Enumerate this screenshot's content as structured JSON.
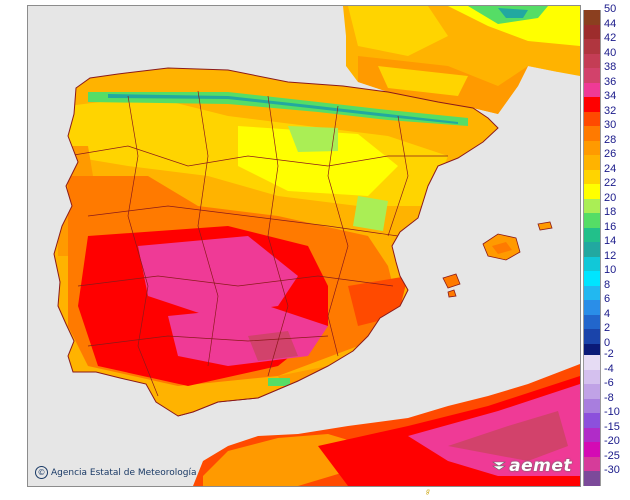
{
  "map": {
    "title": "",
    "credit": "Agencia Estatal de Meteorología",
    "copyright_symbol": "©",
    "logo_text": "aemet",
    "bottom_glyph": "ℊ",
    "colors": {
      "sea": "#e6e6e6",
      "border": "#8b1a1a",
      "land_base": "#ffb300"
    }
  },
  "legend": {
    "units": "",
    "positive": [
      {
        "label": "50",
        "color": "#8b3f1f"
      },
      {
        "label": "44",
        "color": "#9d2c2c"
      },
      {
        "label": "42",
        "color": "#b0363f"
      },
      {
        "label": "40",
        "color": "#c43d55"
      },
      {
        "label": "38",
        "color": "#d2426b"
      },
      {
        "label": "36",
        "color": "#ef3a96"
      },
      {
        "label": "34",
        "color": "#ff0000"
      },
      {
        "label": "32",
        "color": "#ff4a00"
      },
      {
        "label": "30",
        "color": "#ff7a00"
      },
      {
        "label": "28",
        "color": "#ff9a00"
      },
      {
        "label": "26",
        "color": "#ffb300"
      },
      {
        "label": "24",
        "color": "#ffd400"
      },
      {
        "label": "22",
        "color": "#ffff00"
      },
      {
        "label": "20",
        "color": "#aaee55"
      },
      {
        "label": "18",
        "color": "#55dd66"
      },
      {
        "label": "16",
        "color": "#22c08a"
      },
      {
        "label": "14",
        "color": "#22a8a0"
      },
      {
        "label": "12",
        "color": "#11c8d8"
      },
      {
        "label": "10",
        "color": "#00e5ff"
      },
      {
        "label": "8",
        "color": "#22b8f0"
      },
      {
        "label": "6",
        "color": "#2a8ee8"
      },
      {
        "label": "4",
        "color": "#2266cc"
      },
      {
        "label": "2",
        "color": "#1a44aa"
      },
      {
        "label": "0",
        "color": "#0a1a77"
      }
    ],
    "negative": [
      {
        "label": "-2",
        "color": "#e6dcf4"
      },
      {
        "label": "-4",
        "color": "#d4c0ee"
      },
      {
        "label": "-6",
        "color": "#c0a2e6"
      },
      {
        "label": "-8",
        "color": "#a87ede"
      },
      {
        "label": "-10",
        "color": "#8c50dc"
      },
      {
        "label": "-15",
        "color": "#b02cc8"
      },
      {
        "label": "-20",
        "color": "#d40ab4"
      },
      {
        "label": "-25",
        "color": "#d63c9a"
      },
      {
        "label": "-30",
        "color": "#7c4a9a"
      }
    ]
  }
}
